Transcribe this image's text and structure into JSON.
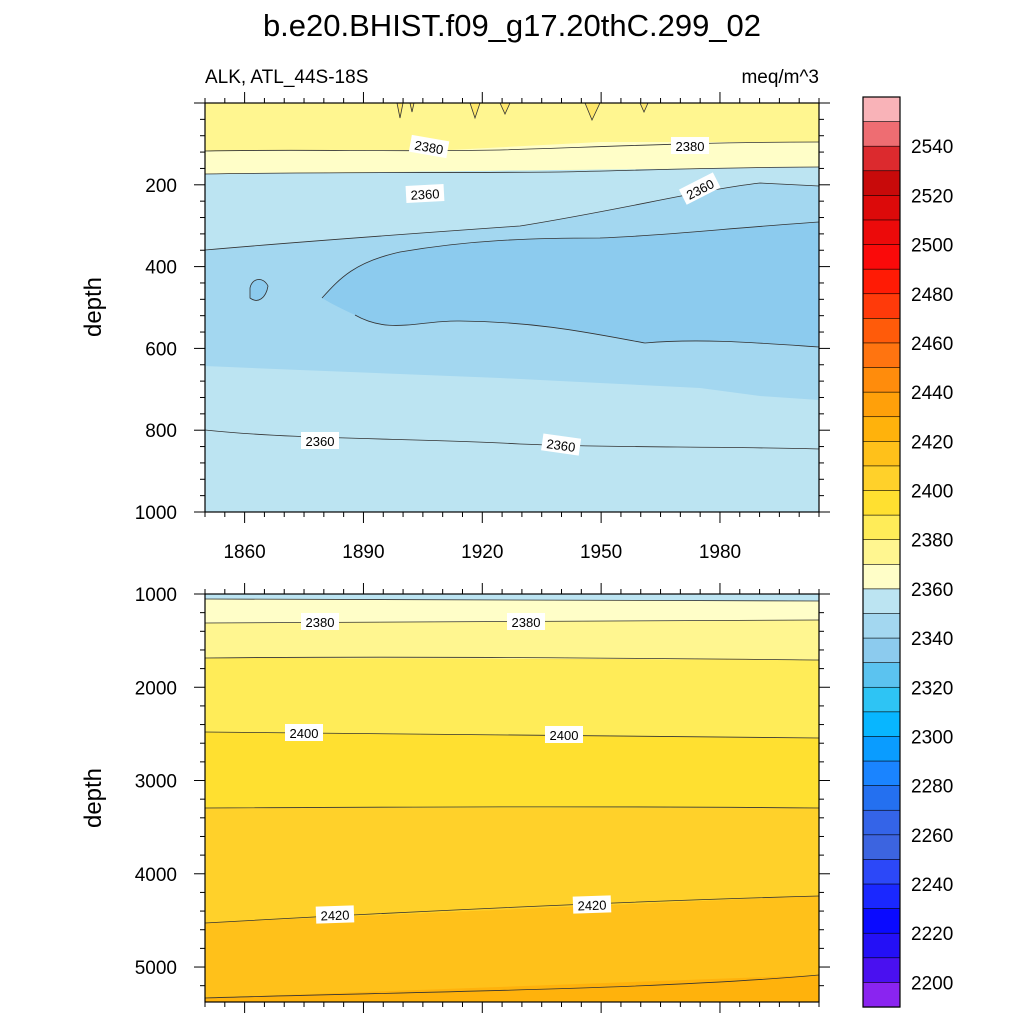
{
  "chart_data": {
    "type": "contour",
    "title": "b.e20.BHIST.f09_g17.20thC.299_02",
    "variable": "ALK, ATL_44S-18S",
    "units": "meq/m^3",
    "xlim": [
      1850,
      2005
    ],
    "xticks": [
      1860,
      1890,
      1920,
      1950,
      1980
    ],
    "panels": [
      {
        "name": "upper",
        "ylabel": "depth",
        "ylim": [
          0,
          1000
        ],
        "yticks": [
          200,
          400,
          600,
          800,
          1000
        ],
        "contour_labels": [
          "2380",
          "2380",
          "2360",
          "2360",
          "2360",
          "2360"
        ]
      },
      {
        "name": "lower",
        "ylabel": "depth",
        "ylim": [
          1000,
          5375
        ],
        "yticks": [
          1000,
          2000,
          3000,
          4000,
          5000
        ],
        "contour_labels": [
          "2380",
          "2380",
          "2400",
          "2400",
          "2420",
          "2420"
        ]
      }
    ],
    "colorbar": {
      "labels": [
        "2540",
        "2520",
        "2500",
        "2480",
        "2460",
        "2440",
        "2420",
        "2400",
        "2380",
        "2360",
        "2340",
        "2320",
        "2300",
        "2280",
        "2260",
        "2240",
        "2220",
        "2200"
      ],
      "colors": [
        "#f9b3b8",
        "#ee6d72",
        "#dc2a2e",
        "#c80a0a",
        "#dc0a0a",
        "#ec0a0a",
        "#fa0a0a",
        "#ff1b05",
        "#ff3a0a",
        "#ff5b0a",
        "#ff7410",
        "#ff8c0c",
        "#ffa00a",
        "#ffb20c",
        "#ffc11a",
        "#ffd12a",
        "#ffe030",
        "#ffec58",
        "#fff690",
        "#fffec8",
        "#bce4f2",
        "#a3d7f0",
        "#8ccbee",
        "#5bc3f0",
        "#2ec4f4",
        "#08b6ff",
        "#0a9cff",
        "#1a84ff",
        "#2470f0",
        "#3464e8",
        "#3c64e0",
        "#2c48f8",
        "#1a28ff",
        "#0a0aff",
        "#2410f6",
        "#4a10f0",
        "#8a24f0"
      ]
    }
  }
}
